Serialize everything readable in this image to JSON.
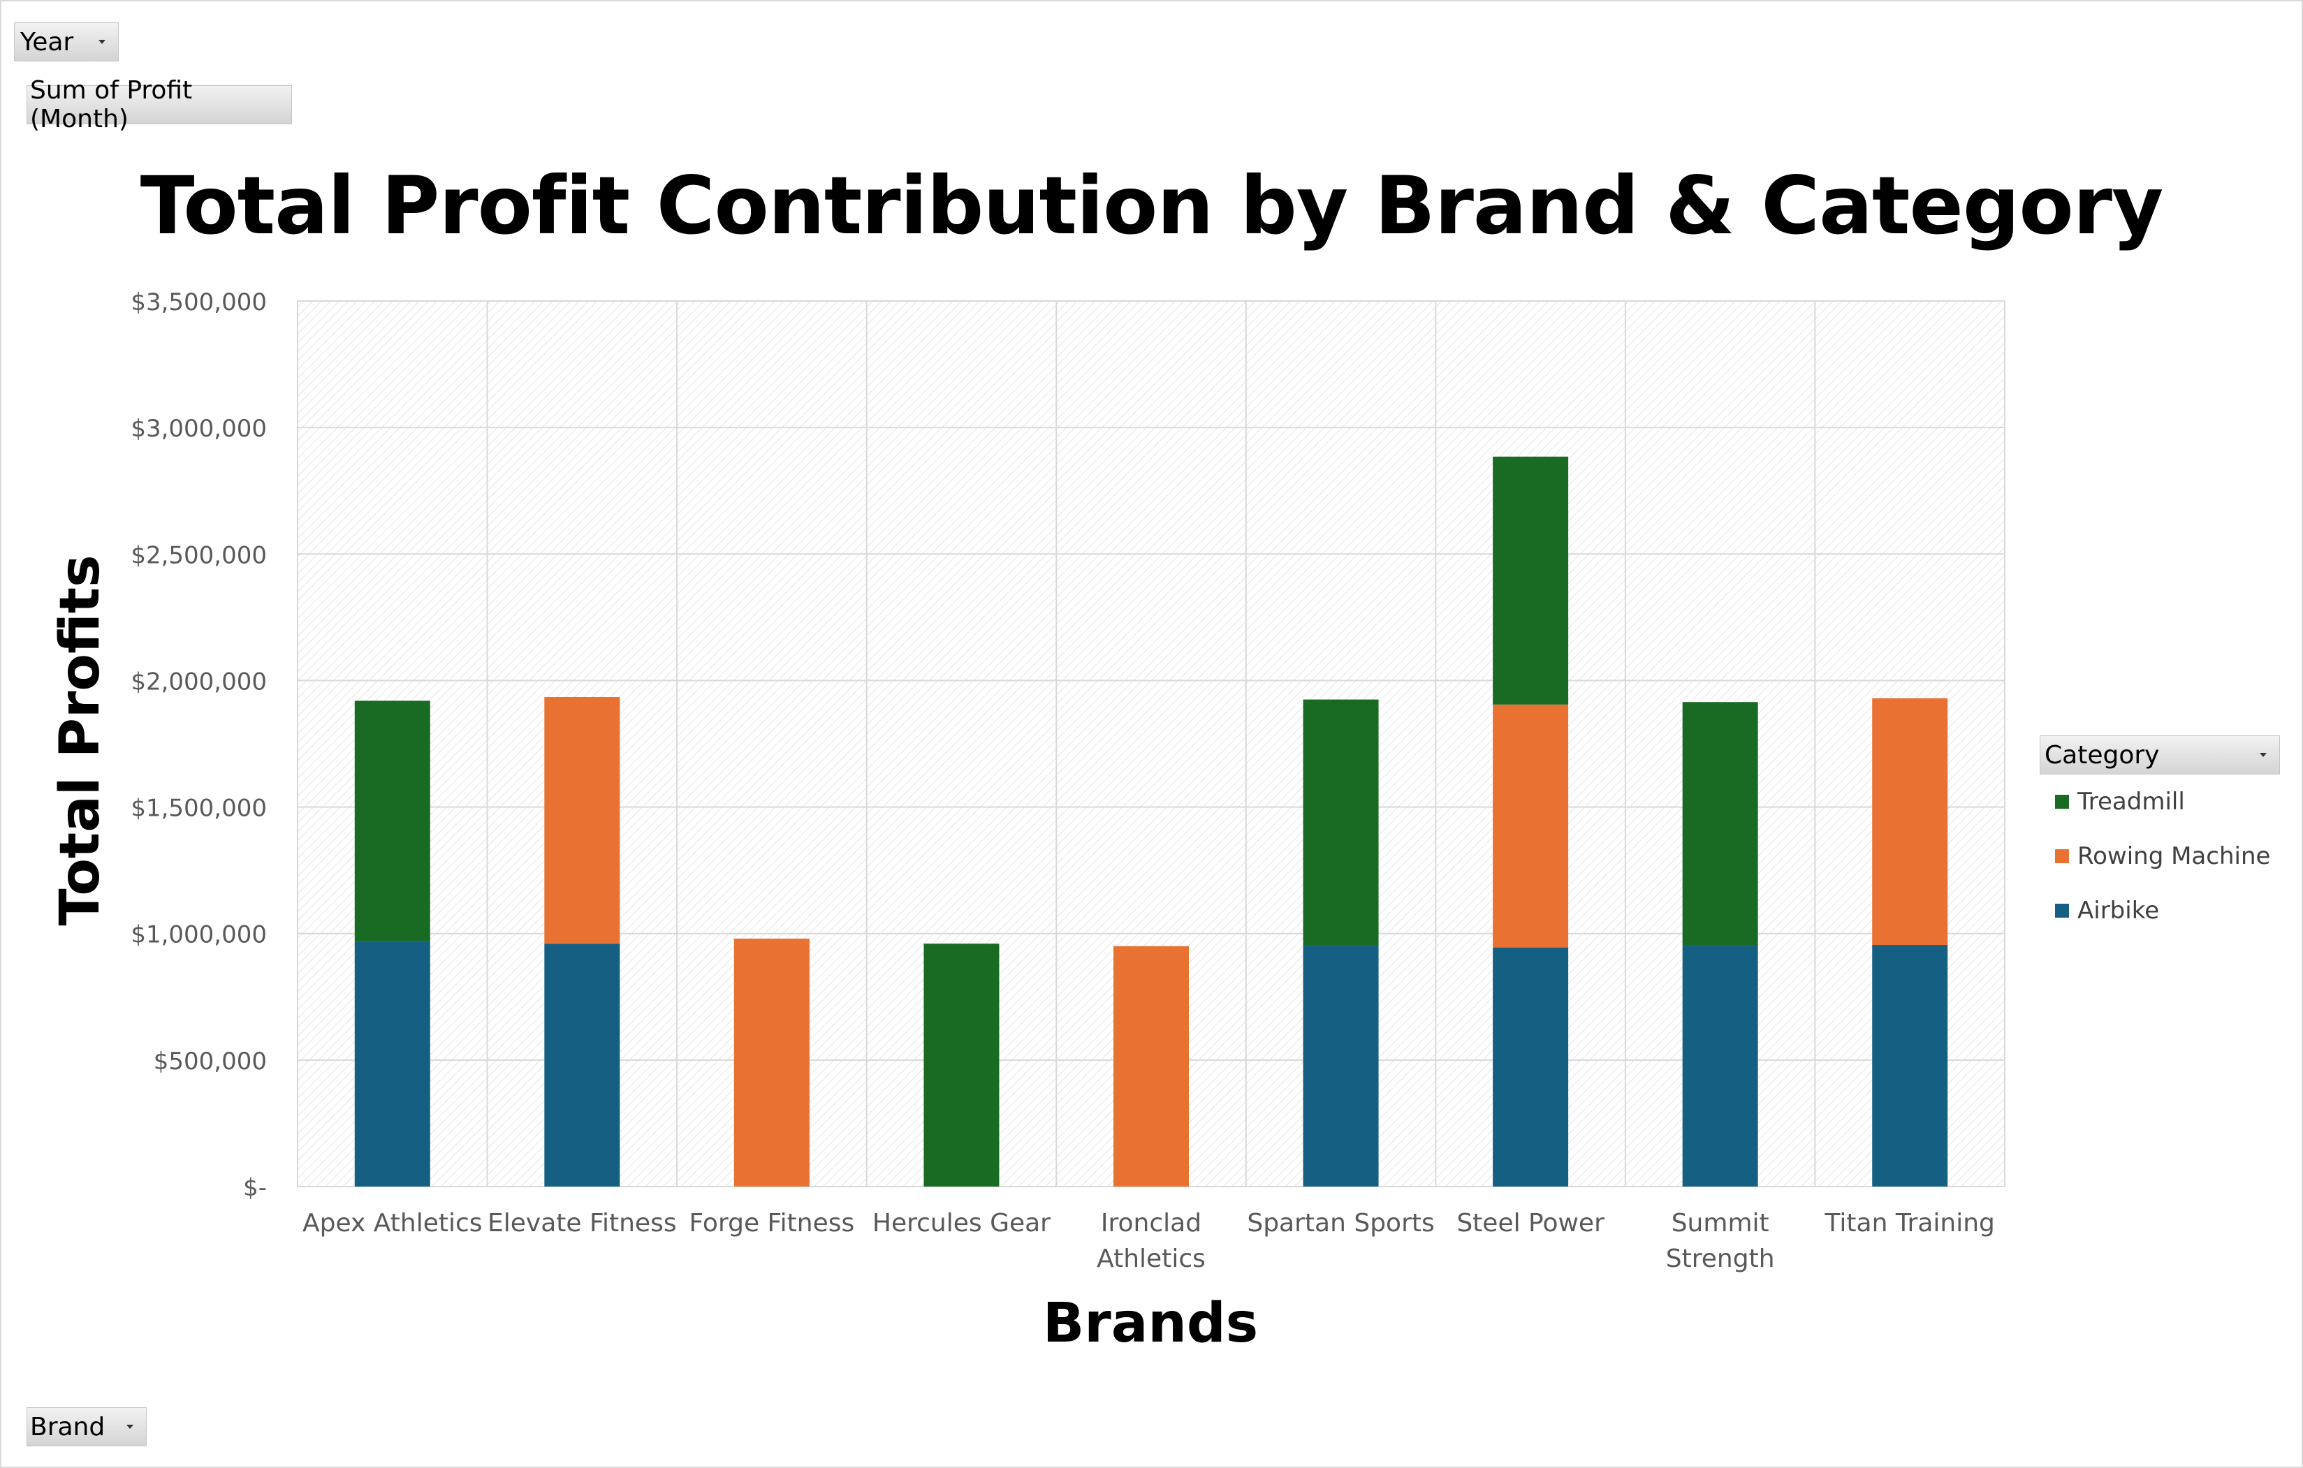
{
  "pivot": {
    "year_label": "Year",
    "field_label": "Sum of Profit (Month)",
    "brand_label": "Brand",
    "category_label": "Category"
  },
  "chart_data": {
    "type": "bar",
    "stacked": true,
    "title": "Total Profit Contribution by Brand & Category",
    "xlabel": "Brands",
    "ylabel": "Total Profits",
    "ylim": [
      0,
      3500000
    ],
    "yticks": [
      0,
      500000,
      1000000,
      1500000,
      2000000,
      2500000,
      3000000,
      3500000
    ],
    "ytick_labels": [
      "$-",
      "$500,000",
      "$1,000,000",
      "$1,500,000",
      "$2,000,000",
      "$2,500,000",
      "$3,000,000",
      "$3,500,000"
    ],
    "grid": true,
    "legend_position": "right",
    "categories": [
      "Apex Athletics",
      "Elevate Fitness",
      "Forge Fitness",
      "Hercules Gear",
      "Ironclad Athletics",
      "Spartan Sports",
      "Steel Power",
      "Summit Strength",
      "Titan Training"
    ],
    "category_lines": [
      [
        "Apex Athletics"
      ],
      [
        "Elevate Fitness"
      ],
      [
        "Forge Fitness"
      ],
      [
        "Hercules Gear"
      ],
      [
        "Ironclad",
        "Athletics"
      ],
      [
        "Spartan Sports"
      ],
      [
        "Steel Power"
      ],
      [
        "Summit",
        "Strength"
      ],
      [
        "Titan Training"
      ]
    ],
    "series": [
      {
        "name": "Airbike",
        "color": "#156082",
        "values": [
          970000,
          960000,
          0,
          0,
          0,
          955000,
          945000,
          955000,
          955000
        ]
      },
      {
        "name": "Rowing Machine",
        "color": "#e97132",
        "values": [
          0,
          975000,
          980000,
          0,
          950000,
          0,
          960000,
          0,
          975000
        ]
      },
      {
        "name": "Treadmill",
        "color": "#196b24",
        "values": [
          950000,
          0,
          0,
          960000,
          0,
          970000,
          980000,
          960000,
          0
        ]
      }
    ],
    "legend_order": [
      "Treadmill",
      "Rowing Machine",
      "Airbike"
    ]
  }
}
